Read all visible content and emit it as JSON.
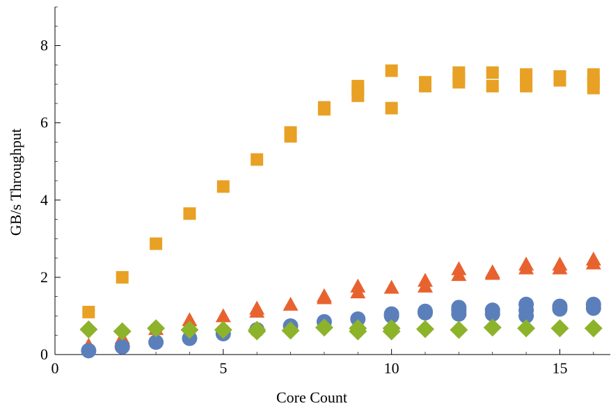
{
  "chart_data": {
    "type": "scatter",
    "title": "",
    "xlabel": "Core Count",
    "ylabel": "GB/s Throughput",
    "xlim": [
      0,
      16.5
    ],
    "ylim": [
      0,
      9
    ],
    "xticks": [
      0,
      5,
      10,
      15
    ],
    "yticks": [
      0,
      2,
      4,
      6,
      8
    ],
    "xtick_labels": [
      "0",
      "5",
      "10",
      "15"
    ],
    "ytick_labels": [
      "0",
      "2",
      "4",
      "6",
      "8"
    ],
    "grid": false,
    "legend": "none",
    "series": [
      {
        "marker": "square",
        "color": "#e8a125",
        "points": [
          [
            1,
            1.1
          ],
          [
            2,
            2.0
          ],
          [
            3,
            2.87
          ],
          [
            4,
            3.65
          ],
          [
            5,
            4.35
          ],
          [
            6,
            5.05
          ],
          [
            7,
            5.65
          ],
          [
            7,
            5.75
          ],
          [
            8,
            6.35
          ],
          [
            8,
            6.4
          ],
          [
            9,
            6.7
          ],
          [
            9,
            6.85
          ],
          [
            9,
            6.95
          ],
          [
            10,
            6.38
          ],
          [
            10,
            7.35
          ],
          [
            11,
            6.95
          ],
          [
            11,
            7.05
          ],
          [
            12,
            7.05
          ],
          [
            12,
            7.15
          ],
          [
            12,
            7.3
          ],
          [
            13,
            6.95
          ],
          [
            13,
            7.3
          ],
          [
            14,
            6.95
          ],
          [
            14,
            7.1
          ],
          [
            14,
            7.25
          ],
          [
            15,
            7.1
          ],
          [
            15,
            7.2
          ],
          [
            16,
            6.9
          ],
          [
            16,
            7.05
          ],
          [
            16,
            7.25
          ]
        ]
      },
      {
        "marker": "triangle",
        "color": "#e8622f",
        "points": [
          [
            1,
            0.22
          ],
          [
            2,
            0.42
          ],
          [
            3,
            0.65
          ],
          [
            4,
            0.78
          ],
          [
            4,
            0.88
          ],
          [
            5,
            0.98
          ],
          [
            6,
            1.1
          ],
          [
            6,
            1.18
          ],
          [
            7,
            1.28
          ],
          [
            8,
            1.45
          ],
          [
            8,
            1.5
          ],
          [
            9,
            1.6
          ],
          [
            9,
            1.75
          ],
          [
            10,
            1.72
          ],
          [
            11,
            1.75
          ],
          [
            11,
            1.9
          ],
          [
            12,
            2.05
          ],
          [
            12,
            2.2
          ],
          [
            13,
            2.08
          ],
          [
            13,
            2.12
          ],
          [
            14,
            2.22
          ],
          [
            14,
            2.32
          ],
          [
            15,
            2.22
          ],
          [
            15,
            2.32
          ],
          [
            16,
            2.35
          ],
          [
            16,
            2.45
          ]
        ]
      },
      {
        "marker": "circle",
        "color": "#5b7fba",
        "points": [
          [
            1,
            0.1
          ],
          [
            2,
            0.2
          ],
          [
            3,
            0.32
          ],
          [
            4,
            0.42
          ],
          [
            5,
            0.54
          ],
          [
            6,
            0.64
          ],
          [
            7,
            0.74
          ],
          [
            8,
            0.85
          ],
          [
            9,
            0.92
          ],
          [
            10,
            1.0
          ],
          [
            10,
            1.05
          ],
          [
            11,
            1.08
          ],
          [
            11,
            1.12
          ],
          [
            12,
            1.05
          ],
          [
            12,
            1.15
          ],
          [
            12,
            1.22
          ],
          [
            13,
            1.05
          ],
          [
            13,
            1.15
          ],
          [
            14,
            1.0
          ],
          [
            14,
            1.15
          ],
          [
            14,
            1.3
          ],
          [
            15,
            1.18
          ],
          [
            15,
            1.25
          ],
          [
            16,
            1.2
          ],
          [
            16,
            1.3
          ]
        ]
      },
      {
        "marker": "diamond",
        "color": "#8db32b",
        "points": [
          [
            1,
            0.65
          ],
          [
            2,
            0.6
          ],
          [
            3,
            0.68
          ],
          [
            4,
            0.64
          ],
          [
            5,
            0.64
          ],
          [
            6,
            0.6
          ],
          [
            6,
            0.64
          ],
          [
            7,
            0.62
          ],
          [
            8,
            0.7
          ],
          [
            9,
            0.6
          ],
          [
            9,
            0.68
          ],
          [
            10,
            0.6
          ],
          [
            10,
            0.68
          ],
          [
            11,
            0.66
          ],
          [
            12,
            0.64
          ],
          [
            13,
            0.7
          ],
          [
            14,
            0.68
          ],
          [
            15,
            0.68
          ],
          [
            16,
            0.68
          ]
        ]
      }
    ]
  }
}
